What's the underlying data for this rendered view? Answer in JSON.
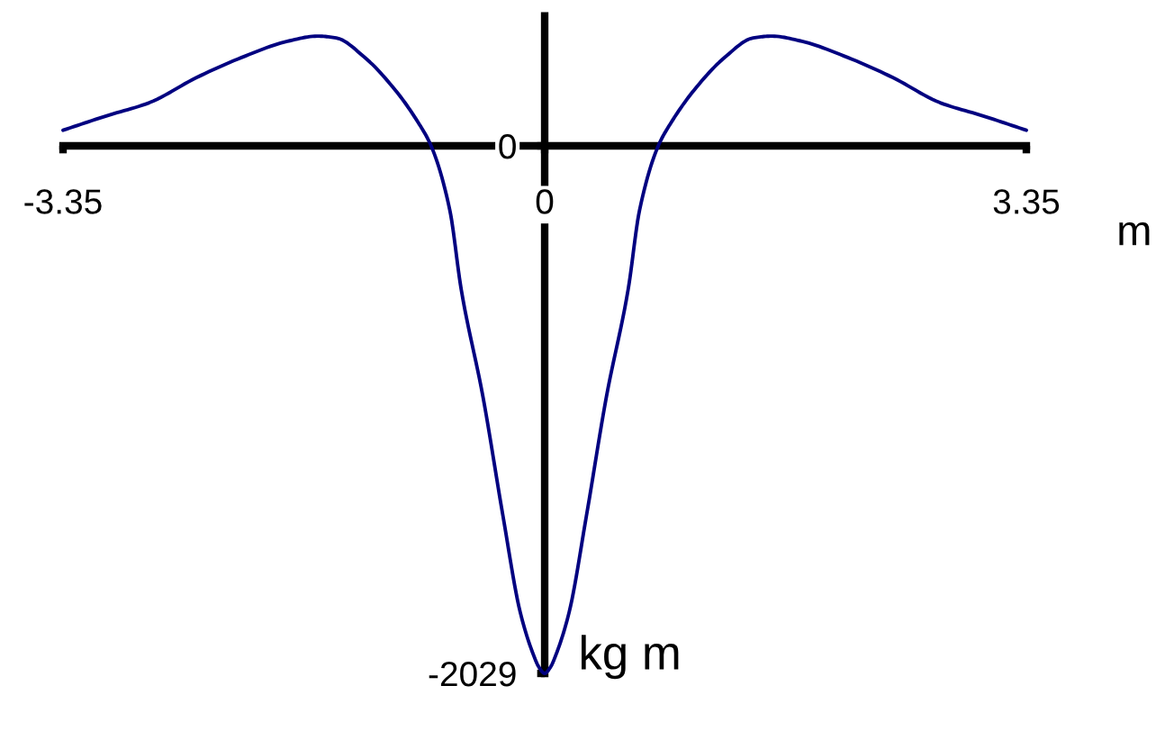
{
  "chart_data": {
    "type": "line",
    "xlabel": "m",
    "ylabel": "kg m",
    "x": [
      -3.35,
      -3.05,
      -2.75,
      -2.42,
      -2.08,
      -1.79,
      -1.58,
      -1.45,
      -1.25,
      -1.04,
      -0.88,
      -0.79,
      -0.66,
      -0.58,
      -0.43,
      -0.29,
      -0.17,
      -0.08,
      -0.04,
      0,
      0.04,
      0.08,
      0.17,
      0.29,
      0.43,
      0.58,
      0.66,
      0.79,
      0.88,
      1.04,
      1.25,
      1.45,
      1.58,
      1.79,
      2.08,
      2.42,
      2.75,
      3.05,
      3.35
    ],
    "series": [
      {
        "color": "#000080",
        "values": [
          60,
          115,
          166,
          263,
          346,
          402,
          422,
          415,
          339,
          215,
          90,
          0,
          -247,
          -554,
          -963,
          -1424,
          -1794,
          -1955,
          -2005,
          -2029,
          -2005,
          -1955,
          -1794,
          -1424,
          -963,
          -554,
          -247,
          0,
          90,
          215,
          339,
          415,
          422,
          402,
          346,
          263,
          166,
          115,
          60
        ]
      }
    ],
    "xlim": [
      -3.35,
      3.35
    ],
    "ylim": [
      -2029,
      500
    ],
    "xticks": [
      -3.35,
      0,
      3.35
    ],
    "yticks": [
      -2029,
      0
    ],
    "grid": false,
    "marker": "none",
    "line_style": "solid"
  }
}
